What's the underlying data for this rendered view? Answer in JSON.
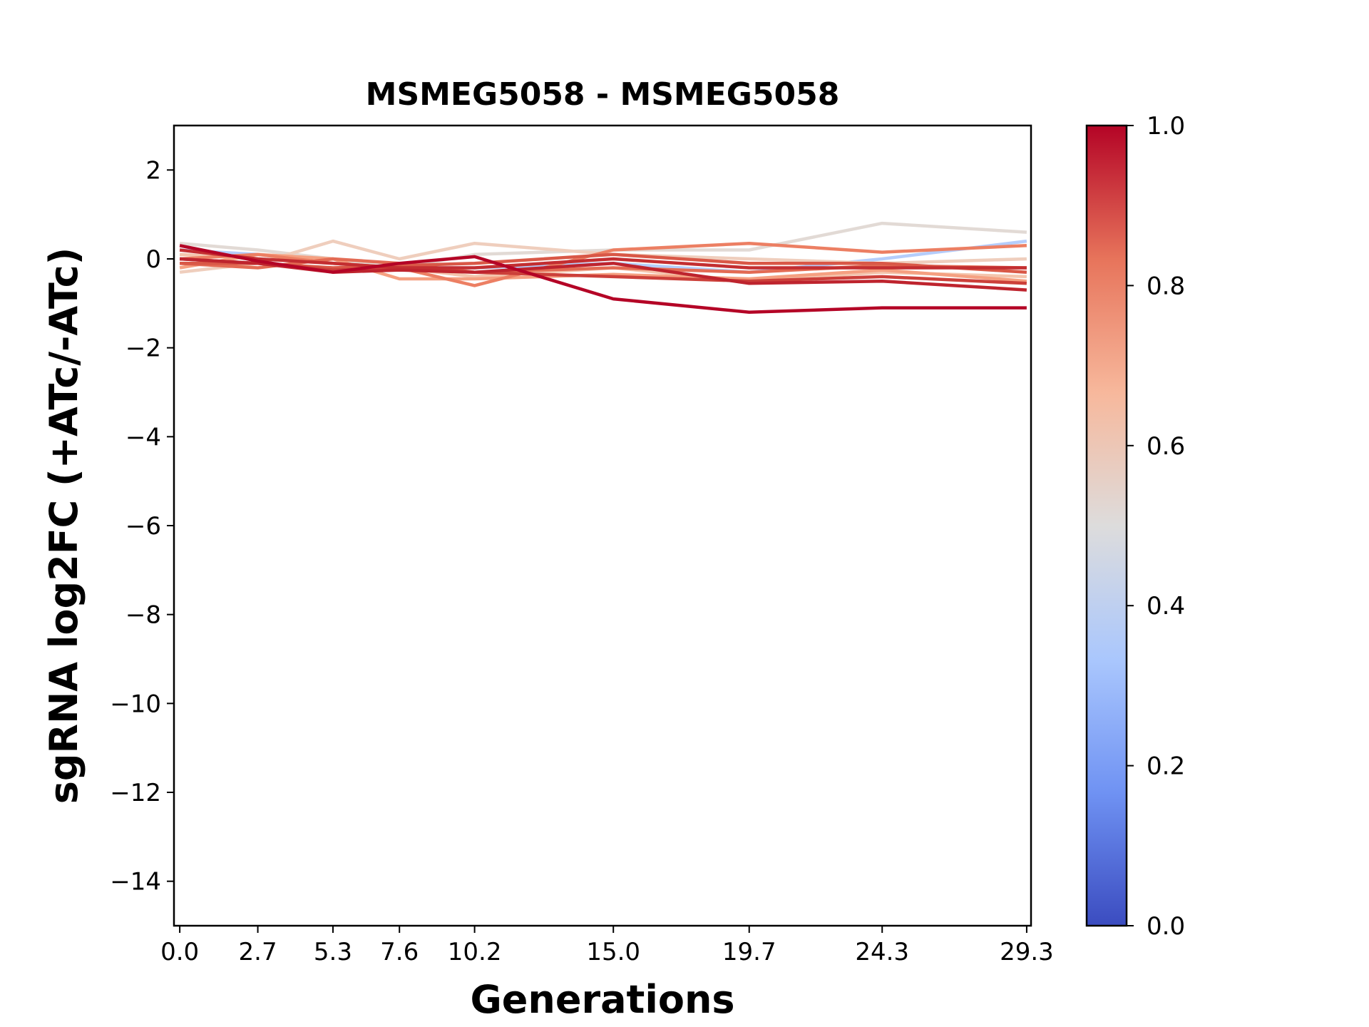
{
  "chart_data": {
    "type": "line",
    "title": "MSMEG5058 - MSMEG5058",
    "xlabel": "Generations",
    "ylabel": "sgRNA log2FC (+ATc/-ATc)",
    "x": [
      0.0,
      2.7,
      5.3,
      7.6,
      10.2,
      15.0,
      19.7,
      24.3,
      29.3
    ],
    "x_tick_labels": [
      "0.0",
      "2.7",
      "5.3",
      "7.6",
      "10.2",
      "15.0",
      "19.7",
      "24.3",
      "29.3"
    ],
    "xlim": [
      -0.2,
      29.45
    ],
    "ylim": [
      -15,
      3
    ],
    "y_ticks": [
      2,
      0,
      -2,
      -4,
      -6,
      -8,
      -10,
      -12,
      -14
    ],
    "y_tick_labels": [
      "2",
      "0",
      "−2",
      "−4",
      "−6",
      "−8",
      "−10",
      "−12",
      "−14"
    ],
    "grid": false,
    "colormap": "coolwarm",
    "colorbar": {
      "range": [
        0.0,
        1.0
      ],
      "ticks": [
        0.0,
        0.2,
        0.4,
        0.6,
        0.8,
        1.0
      ],
      "tick_labels": [
        "0.0",
        "0.2",
        "0.4",
        "0.6",
        "0.8",
        "1.0"
      ],
      "colors": [
        "#3b4cc0",
        "#6f92f3",
        "#aac7fd",
        "#dddcdc",
        "#f7b89c",
        "#e7745b",
        "#b40426"
      ]
    },
    "series": [
      {
        "color_value": 0.4,
        "color": "#b5cdfb",
        "values": [
          0.2,
          0.1,
          -0.1,
          -0.2,
          -0.2,
          -0.1,
          -0.3,
          0.0,
          0.4
        ]
      },
      {
        "color_value": 0.52,
        "color": "#e2dad5",
        "values": [
          0.35,
          0.2,
          0.0,
          -0.2,
          0.1,
          0.2,
          0.2,
          0.8,
          0.6
        ]
      },
      {
        "color_value": 0.58,
        "color": "#efcebd",
        "values": [
          -0.3,
          -0.1,
          0.4,
          0.0,
          0.35,
          0.1,
          0.0,
          -0.1,
          0.0
        ]
      },
      {
        "color_value": 0.64,
        "color": "#f4c5ad",
        "values": [
          0.1,
          0.0,
          -0.1,
          -0.2,
          -0.4,
          -0.2,
          -0.5,
          -0.3,
          -0.4
        ]
      },
      {
        "color_value": 0.72,
        "color": "#f5a081",
        "values": [
          -0.2,
          0.1,
          0.0,
          -0.45,
          -0.45,
          -0.35,
          -0.45,
          -0.25,
          -0.5
        ]
      },
      {
        "color_value": 0.78,
        "color": "#ec7f63",
        "values": [
          0.0,
          0.1,
          -0.1,
          -0.2,
          -0.6,
          0.2,
          0.35,
          0.15,
          0.3
        ]
      },
      {
        "color_value": 0.84,
        "color": "#e36b54",
        "values": [
          -0.1,
          -0.2,
          0.0,
          -0.1,
          -0.3,
          -0.2,
          -0.3,
          -0.15,
          -0.2
        ]
      },
      {
        "color_value": 0.88,
        "color": "#d95847",
        "values": [
          -0.1,
          -0.1,
          -0.2,
          -0.15,
          -0.1,
          0.1,
          -0.1,
          -0.1,
          -0.3
        ]
      },
      {
        "color_value": 0.92,
        "color": "#cc403a",
        "values": [
          0.0,
          -0.1,
          -0.25,
          -0.2,
          -0.3,
          -0.4,
          -0.5,
          -0.4,
          -0.55
        ]
      },
      {
        "color_value": 0.96,
        "color": "#c32e31",
        "values": [
          0.2,
          0.0,
          -0.1,
          -0.2,
          -0.2,
          0.0,
          -0.2,
          -0.2,
          -0.2
        ]
      },
      {
        "color_value": 0.97,
        "color": "#be242e",
        "values": [
          0.0,
          -0.1,
          -0.3,
          -0.25,
          -0.3,
          -0.1,
          -0.55,
          -0.5,
          -0.7
        ]
      },
      {
        "color_value": 1.0,
        "color": "#b40426",
        "values": [
          0.3,
          -0.05,
          -0.3,
          -0.1,
          0.05,
          -0.9,
          -1.2,
          -1.1,
          -1.1
        ]
      }
    ]
  }
}
